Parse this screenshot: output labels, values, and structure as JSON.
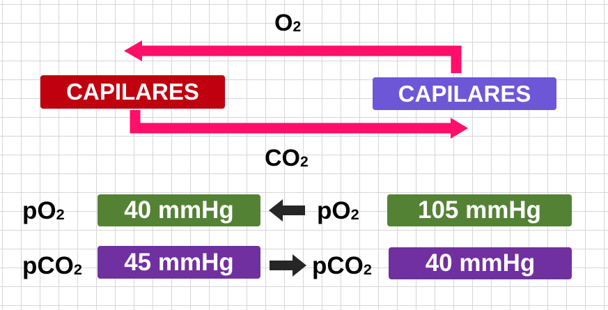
{
  "colors": {
    "arrow": "#ff0f69",
    "capilares_left": "#c0000f",
    "capilares_right": "#6d57d6",
    "po2_box": "#548235",
    "pco2_box": "#7030a0",
    "small_arrow": "#262626"
  },
  "flow": {
    "top_gas": {
      "base": "O",
      "sub": "2"
    },
    "bottom_gas": {
      "base": "CO",
      "sub": "2"
    }
  },
  "left_box": {
    "label": "CAPILARES"
  },
  "right_box": {
    "label": "CAPILARES"
  },
  "rows": [
    {
      "left_label": {
        "base": "pO",
        "sub": "2"
      },
      "left_value": "40 mmHg",
      "arrow_direction": "left",
      "right_label": {
        "base": "pO",
        "sub": "2"
      },
      "right_value": "105 mmHg"
    },
    {
      "left_label": {
        "base": "pCO",
        "sub": "2"
      },
      "left_value": "45 mmHg",
      "arrow_direction": "right",
      "right_label": {
        "base": "pCO",
        "sub": "2"
      },
      "right_value": "40 mmHg"
    }
  ]
}
